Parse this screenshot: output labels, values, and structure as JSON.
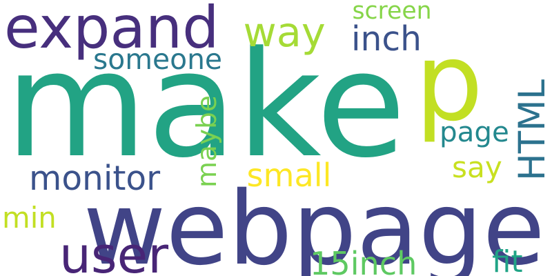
{
  "words": [
    {
      "text": "make",
      "color": "#22a384",
      "rotated": false
    },
    {
      "text": "p",
      "color": "#c2df23",
      "rotated": false
    },
    {
      "text": "webpage",
      "color": "#414487",
      "rotated": false
    },
    {
      "text": "expand",
      "color": "#472f7d",
      "rotated": false
    },
    {
      "text": "way",
      "color": "#a5db36",
      "rotated": false
    },
    {
      "text": "screen",
      "color": "#86d549",
      "rotated": false
    },
    {
      "text": "inch",
      "color": "#3b528b",
      "rotated": false
    },
    {
      "text": "someone",
      "color": "#2a788e",
      "rotated": false
    },
    {
      "text": "HTML",
      "color": "#2c728e",
      "rotated": true
    },
    {
      "text": "maybe",
      "color": "#7ad151",
      "rotated": true
    },
    {
      "text": "page",
      "color": "#23888e",
      "rotated": false
    },
    {
      "text": "say",
      "color": "#c8e020",
      "rotated": false
    },
    {
      "text": "monitor",
      "color": "#3b528b",
      "rotated": false
    },
    {
      "text": "small",
      "color": "#fde725",
      "rotated": false
    },
    {
      "text": "min",
      "color": "#c2df23",
      "rotated": false
    },
    {
      "text": "user",
      "color": "#482576",
      "rotated": false
    },
    {
      "text": "15inch",
      "color": "#5ec962",
      "rotated": false
    },
    {
      "text": "fit",
      "color": "#20a486",
      "rotated": false
    }
  ]
}
